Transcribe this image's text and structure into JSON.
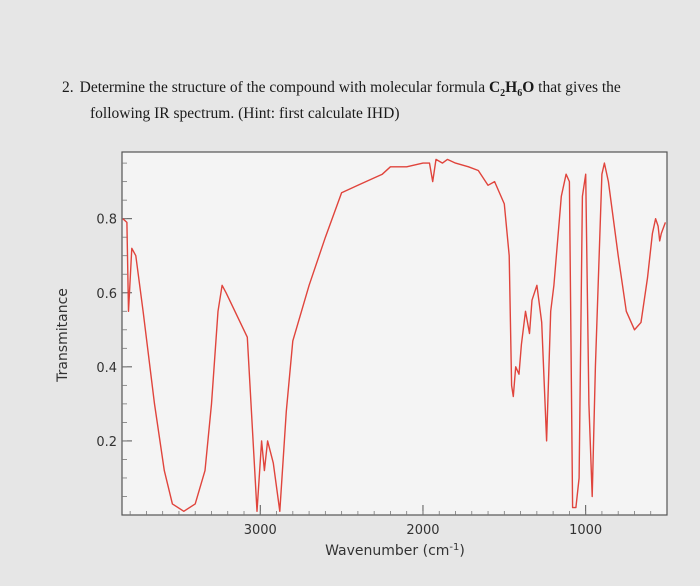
{
  "question": {
    "number": "2.",
    "line1_pre": "Determine the structure of the compound with molecular formula ",
    "formula": {
      "c": "C",
      "c_sub": "2",
      "h": "H",
      "h_sub": "6",
      "o": "O"
    },
    "line1_post": " that gives the",
    "line2": "following IR spectrum. (Hint: first calculate IHD)"
  },
  "chart_data": {
    "type": "line",
    "xlabel": "Wavenumber (cm-1)",
    "ylabel": "Transmitance",
    "x_tick_labels": [
      "3000",
      "2000",
      "1000"
    ],
    "y_tick_labels": [
      "0.2",
      "0.4",
      "0.6",
      "0.8"
    ],
    "x_ticks": [
      3000,
      2000,
      1000
    ],
    "y_ticks": [
      0.2,
      0.4,
      0.6,
      0.8
    ],
    "xlim": [
      3850,
      500
    ],
    "ylim": [
      0.0,
      0.98
    ],
    "line_color": "#e0443c",
    "series": [
      {
        "points": [
          [
            3845,
            0.8
          ],
          [
            3820,
            0.79
          ],
          [
            3810,
            0.55
          ],
          [
            3790,
            0.72
          ],
          [
            3765,
            0.7
          ],
          [
            3720,
            0.55
          ],
          [
            3650,
            0.3
          ],
          [
            3590,
            0.12
          ],
          [
            3540,
            0.03
          ],
          [
            3470,
            0.01
          ],
          [
            3400,
            0.03
          ],
          [
            3340,
            0.12
          ],
          [
            3300,
            0.3
          ],
          [
            3260,
            0.55
          ],
          [
            3235,
            0.62
          ],
          [
            3210,
            0.6
          ],
          [
            3080,
            0.48
          ],
          [
            3020,
            0.01
          ],
          [
            2992,
            0.2
          ],
          [
            2975,
            0.12
          ],
          [
            2955,
            0.2
          ],
          [
            2920,
            0.14
          ],
          [
            2880,
            0.01
          ],
          [
            2840,
            0.28
          ],
          [
            2800,
            0.47
          ],
          [
            2700,
            0.62
          ],
          [
            2600,
            0.75
          ],
          [
            2500,
            0.87
          ],
          [
            2400,
            0.89
          ],
          [
            2300,
            0.91
          ],
          [
            2250,
            0.92
          ],
          [
            2200,
            0.94
          ],
          [
            2100,
            0.94
          ],
          [
            2000,
            0.95
          ],
          [
            1960,
            0.95
          ],
          [
            1940,
            0.9
          ],
          [
            1920,
            0.96
          ],
          [
            1880,
            0.95
          ],
          [
            1850,
            0.96
          ],
          [
            1800,
            0.95
          ],
          [
            1720,
            0.94
          ],
          [
            1660,
            0.93
          ],
          [
            1600,
            0.89
          ],
          [
            1560,
            0.9
          ],
          [
            1500,
            0.84
          ],
          [
            1470,
            0.7
          ],
          [
            1455,
            0.35
          ],
          [
            1445,
            0.32
          ],
          [
            1430,
            0.4
          ],
          [
            1410,
            0.38
          ],
          [
            1395,
            0.46
          ],
          [
            1370,
            0.55
          ],
          [
            1345,
            0.49
          ],
          [
            1330,
            0.58
          ],
          [
            1300,
            0.62
          ],
          [
            1270,
            0.52
          ],
          [
            1240,
            0.2
          ],
          [
            1215,
            0.55
          ],
          [
            1195,
            0.62
          ],
          [
            1150,
            0.86
          ],
          [
            1120,
            0.92
          ],
          [
            1100,
            0.9
          ],
          [
            1080,
            0.02
          ],
          [
            1060,
            0.02
          ],
          [
            1040,
            0.1
          ],
          [
            1020,
            0.86
          ],
          [
            1000,
            0.92
          ],
          [
            980,
            0.3
          ],
          [
            960,
            0.05
          ],
          [
            940,
            0.4
          ],
          [
            900,
            0.92
          ],
          [
            885,
            0.95
          ],
          [
            860,
            0.9
          ],
          [
            800,
            0.7
          ],
          [
            750,
            0.55
          ],
          [
            700,
            0.5
          ],
          [
            660,
            0.52
          ],
          [
            620,
            0.64
          ],
          [
            590,
            0.76
          ],
          [
            570,
            0.8
          ],
          [
            555,
            0.78
          ],
          [
            545,
            0.74
          ],
          [
            535,
            0.76
          ],
          [
            510,
            0.79
          ]
        ]
      }
    ]
  }
}
